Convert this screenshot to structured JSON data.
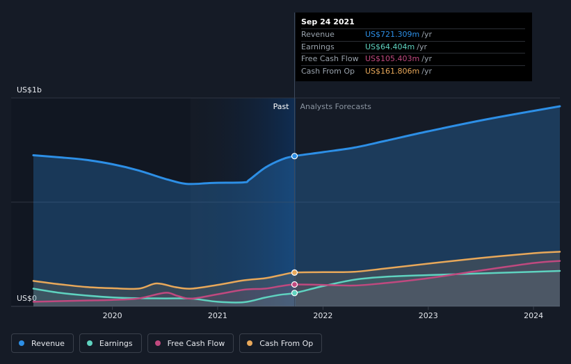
{
  "chart_data": {
    "type": "area",
    "y_axis": {
      "top_label": "US$1b",
      "bottom_label": "US$0",
      "ylim": [
        0,
        1000
      ]
    },
    "x_axis": {
      "ticks": [
        "2020",
        "2021",
        "2022",
        "2023",
        "2024"
      ],
      "range": [
        2019.25,
        2024.25
      ]
    },
    "divider": {
      "x": 2021.73,
      "past_label": "Past",
      "forecast_label": "Analysts Forecasts"
    },
    "series": [
      {
        "name": "Revenue",
        "color": "#2d8fe6",
        "points": [
          [
            2019.25,
            725
          ],
          [
            2019.5,
            715
          ],
          [
            2019.75,
            703
          ],
          [
            2020.0,
            682
          ],
          [
            2020.25,
            652
          ],
          [
            2020.5,
            612
          ],
          [
            2020.7,
            588
          ],
          [
            2020.9,
            591
          ],
          [
            2021.0,
            593
          ],
          [
            2021.25,
            595
          ],
          [
            2021.3,
            607
          ],
          [
            2021.45,
            665
          ],
          [
            2021.6,
            703
          ],
          [
            2021.73,
            721
          ],
          [
            2022.0,
            740
          ],
          [
            2022.3,
            762
          ],
          [
            2022.6,
            795
          ],
          [
            2023.0,
            840
          ],
          [
            2023.5,
            892
          ],
          [
            2024.0,
            938
          ],
          [
            2024.25,
            960
          ]
        ]
      },
      {
        "name": "Earnings",
        "color": "#5fd3c0",
        "points": [
          [
            2019.25,
            85
          ],
          [
            2019.5,
            65
          ],
          [
            2019.75,
            52
          ],
          [
            2020.0,
            43
          ],
          [
            2020.25,
            39
          ],
          [
            2020.5,
            38
          ],
          [
            2020.75,
            37
          ],
          [
            2021.0,
            22
          ],
          [
            2021.25,
            20
          ],
          [
            2021.45,
            42
          ],
          [
            2021.6,
            56
          ],
          [
            2021.73,
            64
          ],
          [
            2022.0,
            97
          ],
          [
            2022.3,
            128
          ],
          [
            2022.6,
            142
          ],
          [
            2023.0,
            150
          ],
          [
            2023.5,
            158
          ],
          [
            2024.0,
            166
          ],
          [
            2024.25,
            170
          ]
        ]
      },
      {
        "name": "Free Cash Flow",
        "color": "#c0497f",
        "points": [
          [
            2019.25,
            22
          ],
          [
            2019.5,
            25
          ],
          [
            2019.75,
            28
          ],
          [
            2020.0,
            31
          ],
          [
            2020.25,
            38
          ],
          [
            2020.5,
            65
          ],
          [
            2020.62,
            50
          ],
          [
            2020.75,
            37
          ],
          [
            2021.0,
            58
          ],
          [
            2021.25,
            80
          ],
          [
            2021.45,
            85
          ],
          [
            2021.6,
            97
          ],
          [
            2021.73,
            105
          ],
          [
            2022.0,
            103
          ],
          [
            2022.3,
            100
          ],
          [
            2022.6,
            112
          ],
          [
            2023.0,
            135
          ],
          [
            2023.5,
            172
          ],
          [
            2024.0,
            208
          ],
          [
            2024.25,
            218
          ]
        ]
      },
      {
        "name": "Cash From Op",
        "color": "#e8a85a",
        "points": [
          [
            2019.25,
            122
          ],
          [
            2019.5,
            106
          ],
          [
            2019.75,
            93
          ],
          [
            2020.0,
            87
          ],
          [
            2020.25,
            85
          ],
          [
            2020.42,
            110
          ],
          [
            2020.6,
            92
          ],
          [
            2020.75,
            85
          ],
          [
            2021.0,
            103
          ],
          [
            2021.25,
            125
          ],
          [
            2021.45,
            135
          ],
          [
            2021.6,
            150
          ],
          [
            2021.73,
            162
          ],
          [
            2022.0,
            164
          ],
          [
            2022.3,
            166
          ],
          [
            2022.6,
            182
          ],
          [
            2023.0,
            205
          ],
          [
            2023.5,
            232
          ],
          [
            2024.0,
            255
          ],
          [
            2024.25,
            262
          ]
        ]
      }
    ],
    "tooltip": {
      "date": "Sep 24 2021",
      "rows": [
        {
          "label": "Revenue",
          "value": "US$721.309m",
          "unit": "/yr",
          "color": "#2d8fe6"
        },
        {
          "label": "Earnings",
          "value": "US$64.404m",
          "unit": "/yr",
          "color": "#5fd3c0"
        },
        {
          "label": "Free Cash Flow",
          "value": "US$105.403m",
          "unit": "/yr",
          "color": "#c0497f"
        },
        {
          "label": "Cash From Op",
          "value": "US$161.806m",
          "unit": "/yr",
          "color": "#e8a85a"
        }
      ]
    },
    "legend": [
      {
        "label": "Revenue",
        "color": "#2d8fe6"
      },
      {
        "label": "Earnings",
        "color": "#5fd3c0"
      },
      {
        "label": "Free Cash Flow",
        "color": "#c0497f"
      },
      {
        "label": "Cash From Op",
        "color": "#e8a85a"
      }
    ]
  }
}
